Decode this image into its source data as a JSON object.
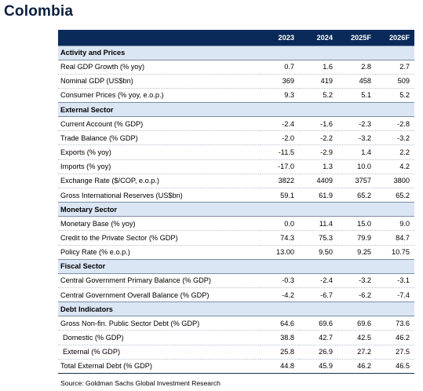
{
  "title": "Colombia",
  "columns": [
    "2023",
    "2024",
    "2025F",
    "2026F"
  ],
  "sections": [
    {
      "name": "Activity and Prices",
      "rows": [
        {
          "label": "Real GDP Growth (% yoy)",
          "values": [
            "0.7",
            "1.6",
            "2.8",
            "2.7"
          ]
        },
        {
          "label": "Nominal GDP (US$bn)",
          "values": [
            "369",
            "419",
            "458",
            "509"
          ]
        },
        {
          "label": "Consumer Prices (% yoy, e.o.p.)",
          "values": [
            "9.3",
            "5.2",
            "5.1",
            "5.2"
          ]
        }
      ]
    },
    {
      "name": "External Sector",
      "rows": [
        {
          "label": "Current Account (% GDP)",
          "values": [
            "-2.4",
            "-1.6",
            "-2.3",
            "-2.8"
          ]
        },
        {
          "label": "Trade Balance (% GDP)",
          "values": [
            "-2.0",
            "-2.2",
            "-3.2",
            "-3.2"
          ]
        },
        {
          "label": "Exports (% yoy)",
          "values": [
            "-11.5",
            "-2.9",
            "1.4",
            "2.2"
          ]
        },
        {
          "label": "Imports (% yoy)",
          "values": [
            "-17.0",
            "1.3",
            "10.0",
            "4.2"
          ]
        },
        {
          "label": "Exchange Rate ($/COP, e.o.p.)",
          "values": [
            "3822",
            "4409",
            "3757",
            "3800"
          ]
        },
        {
          "label": "Gross International Reserves (US$bn)",
          "values": [
            "59.1",
            "61.9",
            "65.2",
            "65.2"
          ]
        }
      ]
    },
    {
      "name": "Monetary Sector",
      "rows": [
        {
          "label": "Monetary Base (% yoy)",
          "values": [
            "0.0",
            "11.4",
            "15.0",
            "9.0"
          ]
        },
        {
          "label": "Credit to the Private Sector (% GDP)",
          "values": [
            "74.3",
            "75.3",
            "79.9",
            "84.7"
          ]
        },
        {
          "label": "Policy Rate (% e.o.p.)",
          "values": [
            "13.00",
            "9.50",
            "9.25",
            "10.75"
          ]
        }
      ]
    },
    {
      "name": "Fiscal Sector",
      "rows": [
        {
          "label": "Central Government Primary Balance (% GDP)",
          "values": [
            "-0.3",
            "-2.4",
            "-3.2",
            "-3.1"
          ]
        },
        {
          "label": "Central Government Overall Balance (% GDP)",
          "values": [
            "-4.2",
            "-6.7",
            "-6.2",
            "-7.4"
          ]
        }
      ]
    },
    {
      "name": "Debt Indicators",
      "rows": [
        {
          "label": "Gross Non-fin. Public Sector Debt (% GDP)",
          "values": [
            "64.6",
            "69.6",
            "69.6",
            "73.6"
          ]
        },
        {
          "label": "Domestic (% GDP)",
          "values": [
            "38.8",
            "42.7",
            "42.5",
            "46.2"
          ],
          "indent": true
        },
        {
          "label": "External (% GDP)",
          "values": [
            "25.8",
            "26.9",
            "27.2",
            "27.5"
          ],
          "indent": true
        },
        {
          "label": "Total External Debt (% GDP)",
          "values": [
            "44.8",
            "45.9",
            "46.2",
            "46.5"
          ]
        }
      ]
    }
  ],
  "source": "Source: Goldman Sachs Global Investment Research",
  "colors": {
    "header_bg": "#0a2a5a",
    "section_bg": "#dbe6f4",
    "title": "#0b1f3f"
  }
}
